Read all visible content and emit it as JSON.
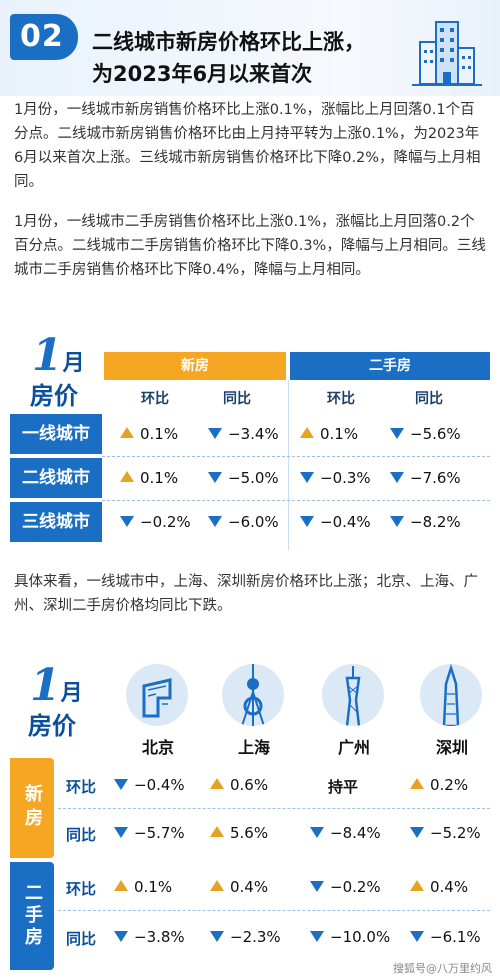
{
  "header": {
    "badge": "02",
    "line1": "二线城市新房价格环比上涨，",
    "line2": "为2023年6月以来首次"
  },
  "paragraphs": {
    "p1": "1月份，一线城市新房销售价格环比上涨0.1%，涨幅比上月回落0.1个百分点。二线城市新房销售价格环比由上月持平转为上涨0.1%，为2023年6月以来首次上涨。三线城市新房销售价格环比下降0.2%，降幅与上月相同。",
    "p2": "1月份，一线城市二手房销售价格环比上涨0.1%，涨幅比上月回落0.2个百分点。二线城市二手房销售价格环比下降0.3%，降幅与上月相同。三线城市二手房销售价格环比下降0.4%，降幅与上月相同。",
    "p3": "具体来看，一线城市中，上海、深圳新房价格环比上涨；北京、上海、广州、深圳二手房价格均同比下跌。"
  },
  "table1": {
    "month_num": "1",
    "month_char": "月",
    "title": "房价",
    "group_new": "新房",
    "group_second": "二手房",
    "sub_mom": "环比",
    "sub_yoy": "同比",
    "rows": [
      {
        "label": "一线城市",
        "new_mom": "0.1%",
        "new_mom_dir": "up",
        "new_yoy": "−3.4%",
        "new_yoy_dir": "down",
        "sec_mom": "0.1%",
        "sec_mom_dir": "up",
        "sec_yoy": "−5.6%",
        "sec_yoy_dir": "down"
      },
      {
        "label": "二线城市",
        "new_mom": "0.1%",
        "new_mom_dir": "up",
        "new_yoy": "−5.0%",
        "new_yoy_dir": "down",
        "sec_mom": "−0.3%",
        "sec_mom_dir": "down",
        "sec_yoy": "−7.6%",
        "sec_yoy_dir": "down"
      },
      {
        "label": "三线城市",
        "new_mom": "−0.2%",
        "new_mom_dir": "down",
        "new_yoy": "−6.0%",
        "new_yoy_dir": "down",
        "sec_mom": "−0.4%",
        "sec_mom_dir": "down",
        "sec_yoy": "−8.2%",
        "sec_yoy_dir": "down"
      }
    ]
  },
  "table2": {
    "month_num": "1",
    "month_char": "月",
    "title": "房价",
    "cities": [
      "北京",
      "上海",
      "广州",
      "深圳"
    ],
    "side_new": "新房",
    "side_second": "二手房",
    "metric_mom": "环比",
    "metric_yoy": "同比",
    "new_mom": [
      {
        "v": "−0.4%",
        "dir": "down"
      },
      {
        "v": "0.6%",
        "dir": "up"
      },
      {
        "v": "持平",
        "dir": "none"
      },
      {
        "v": "0.2%",
        "dir": "up"
      }
    ],
    "new_yoy": [
      {
        "v": "−5.7%",
        "dir": "down"
      },
      {
        "v": "5.6%",
        "dir": "up"
      },
      {
        "v": "−8.4%",
        "dir": "down"
      },
      {
        "v": "−5.2%",
        "dir": "down"
      }
    ],
    "sec_mom": [
      {
        "v": "0.1%",
        "dir": "up"
      },
      {
        "v": "0.4%",
        "dir": "up"
      },
      {
        "v": "−0.2%",
        "dir": "down"
      },
      {
        "v": "0.4%",
        "dir": "up"
      }
    ],
    "sec_yoy": [
      {
        "v": "−3.8%",
        "dir": "down"
      },
      {
        "v": "−2.3%",
        "dir": "down"
      },
      {
        "v": "−10.0%",
        "dir": "down"
      },
      {
        "v": "−6.1%",
        "dir": "down"
      }
    ]
  },
  "colors": {
    "blue": "#1a6fc4",
    "orange": "#f5a623",
    "up_arrow": "#e5a321",
    "down_arrow": "#1a6fc4"
  },
  "icons": [
    "building-icon",
    "up-arrow-icon",
    "down-arrow-icon",
    "beijing-cctv-icon",
    "shanghai-tower-icon",
    "guangzhou-tower-icon",
    "shenzhen-tower-icon"
  ],
  "watermark": "搜狐号@八万里约风"
}
